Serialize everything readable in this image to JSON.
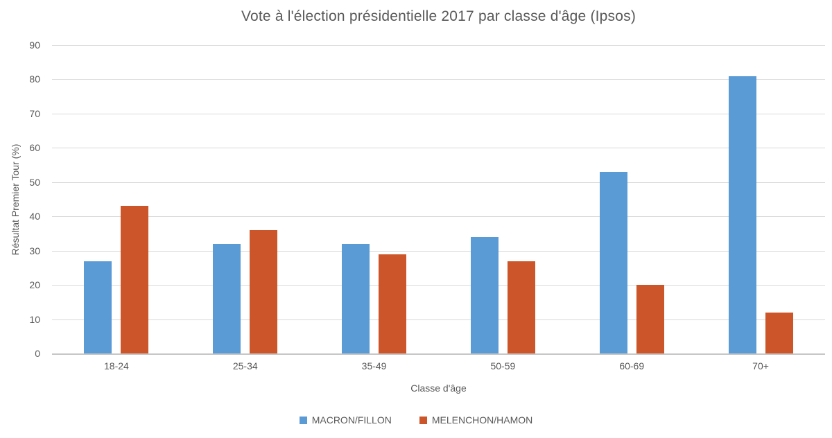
{
  "title": "Vote à l'élection présidentielle 2017 par classe d'âge (Ipsos)",
  "colors": {
    "series_blue": "#5b9bd5",
    "series_orange": "#cc5529",
    "gridline": "#d9d9d9",
    "axis_line": "#c6c6c6",
    "text": "#595959",
    "background": "#ffffff"
  },
  "chart_data": {
    "type": "bar",
    "title": "Vote à l'élection présidentielle 2017 par classe d'âge (Ipsos)",
    "categories": [
      "18-24",
      "25-34",
      "35-49",
      "50-59",
      "60-69",
      "70+"
    ],
    "series": [
      {
        "name": "MACRON/FILLON",
        "color": "#5b9bd5",
        "values": [
          27,
          32,
          32,
          34,
          53,
          81
        ]
      },
      {
        "name": "MELENCHON/HAMON",
        "color": "#cc5529",
        "values": [
          43,
          36,
          29,
          27,
          20,
          12
        ]
      }
    ],
    "xlabel": "Classe d'âge",
    "ylabel": "Résultat Premier Tour (%)",
    "ylim": [
      0,
      90
    ],
    "ytick_step": 10,
    "yticks": [
      0,
      10,
      20,
      30,
      40,
      50,
      60,
      70,
      80,
      90
    ],
    "grid": true,
    "legend_position": "bottom"
  }
}
